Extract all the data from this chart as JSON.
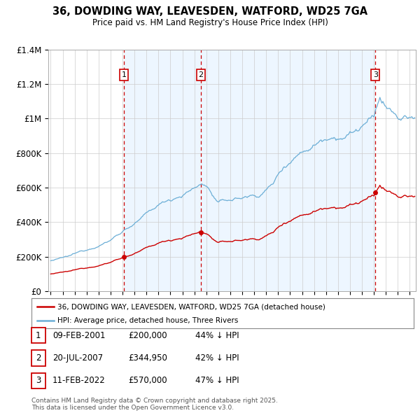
{
  "title": "36, DOWDING WAY, LEAVESDEN, WATFORD, WD25 7GA",
  "subtitle": "Price paid vs. HM Land Registry's House Price Index (HPI)",
  "ylim": [
    0,
    1400000
  ],
  "yticks": [
    0,
    200000,
    400000,
    600000,
    800000,
    1000000,
    1200000,
    1400000
  ],
  "ytick_labels": [
    "£0",
    "£200K",
    "£400K",
    "£600K",
    "£800K",
    "£1M",
    "£1.2M",
    "£1.4M"
  ],
  "grid_color": "#cccccc",
  "hpi_color": "#6baed6",
  "price_color": "#cc0000",
  "vline_color": "#cc0000",
  "shade_color": "#ddeeff",
  "transactions": [
    {
      "num": 1,
      "date_x": 2001.12,
      "price": 200000,
      "label": "09-FEB-2001",
      "price_str": "£200,000",
      "hpi_pct": "44% ↓ HPI"
    },
    {
      "num": 2,
      "date_x": 2007.55,
      "price": 344950,
      "label": "20-JUL-2007",
      "price_str": "£344,950",
      "hpi_pct": "42% ↓ HPI"
    },
    {
      "num": 3,
      "date_x": 2022.12,
      "price": 570000,
      "label": "11-FEB-2022",
      "price_str": "£570,000",
      "hpi_pct": "47% ↓ HPI"
    }
  ],
  "legend_line1": "36, DOWDING WAY, LEAVESDEN, WATFORD, WD25 7GA (detached house)",
  "legend_line2": "HPI: Average price, detached house, Three Rivers",
  "footnote": "Contains HM Land Registry data © Crown copyright and database right 2025.\nThis data is licensed under the Open Government Licence v3.0.",
  "xmin": 1994.8,
  "xmax": 2025.5
}
